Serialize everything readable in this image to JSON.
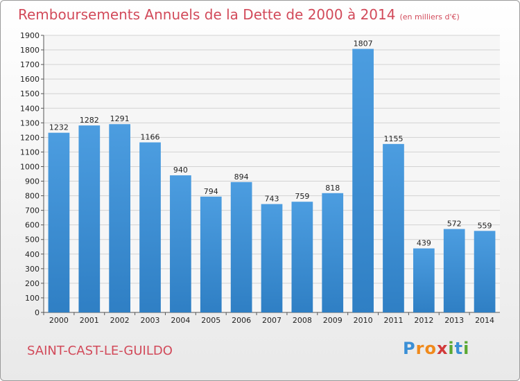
{
  "title": "Remboursements Annuels de la Dette de 2000 à 2014",
  "subtitle": "(en milliers d'€)",
  "city": "SAINT-CAST-LE-GUILDO",
  "logo": {
    "text": "Proxiti",
    "letters": [
      "P",
      "r",
      "o",
      "x",
      "i",
      "t",
      "i"
    ],
    "colors": [
      "#3a8fd6",
      "#f08a1c",
      "#f08a1c",
      "#d23a3a",
      "#5aa832",
      "#3a8fd6",
      "#5aa832"
    ]
  },
  "colors": {
    "accent": "#d24a5a",
    "bar": "#4c9de0",
    "bar_dark": "#2f7fc4",
    "grid": "#d2d2d2",
    "text": "#222222"
  },
  "chart_data": {
    "type": "bar",
    "categories": [
      "2000",
      "2001",
      "2002",
      "2003",
      "2004",
      "2005",
      "2006",
      "2007",
      "2008",
      "2009",
      "2010",
      "2011",
      "2012",
      "2013",
      "2014"
    ],
    "values": [
      1232,
      1282,
      1291,
      1166,
      940,
      794,
      894,
      743,
      759,
      818,
      1807,
      1155,
      439,
      572,
      559
    ],
    "ylim": [
      0,
      1900
    ],
    "ystep": 100,
    "grid": true
  }
}
